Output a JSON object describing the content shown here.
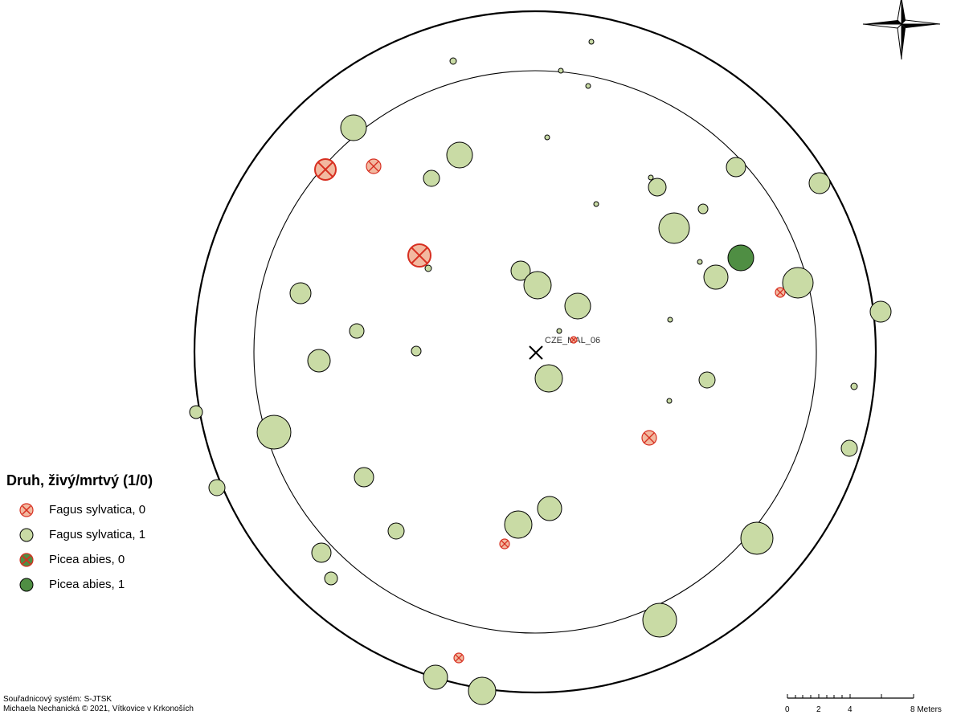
{
  "map": {
    "center_label": "CZE_MAL_06"
  },
  "legend": {
    "title": "Druh, živý/mrtvý (1/0)",
    "items": [
      {
        "label": "Fagus sylvatica, 0",
        "fill": "#f2b9a0",
        "cross": "#d72f21"
      },
      {
        "label": "Fagus sylvatica, 1",
        "fill": "#c9dba5",
        "cross": ""
      },
      {
        "label": "Picea abies, 0",
        "fill": "#4f8e43",
        "cross": "#d72f21"
      },
      {
        "label": "Picea abies, 1",
        "fill": "#4f8e43",
        "cross": ""
      }
    ]
  },
  "credits": {
    "line1": "Souřadnicový systém: S-JTSK",
    "line2": "Michaela Nechanická © 2021, Vítkovice v Krkonoších"
  },
  "scalebar": {
    "labels": [
      "0",
      "2",
      "4",
      "8 Meters"
    ],
    "max_meters": 8
  },
  "colors": {
    "fagus_live": "#c9dba5",
    "fagus_dead": "#f2b9a0",
    "picea_live": "#4f8e43",
    "dead_cross": "#d72f21"
  }
}
